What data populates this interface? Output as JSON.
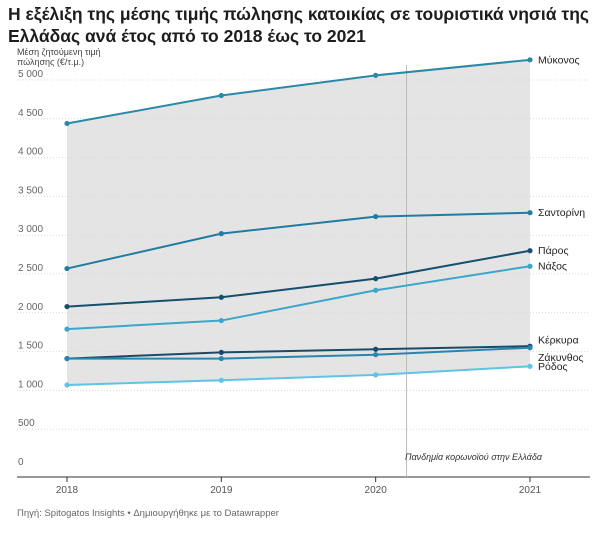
{
  "title": "Η εξέλιξη της μέσης τιμής πώλησης κατοικίας σε τουριστικά νησιά της Ελλάδας ανά έτος από το 2018 έως το 2021",
  "footer": "Πηγή: Spitogatos Insights • Δημιουργήθηκε με το Datawrapper",
  "chart_data": {
    "type": "line",
    "title": "Η εξέλιξη της μέσης τιμής πώλησης κατοικίας σε τουριστικά νησιά της Ελλάδας ανά έτος από το 2018 έως το 2021",
    "ylabel": "Μέση ζητούμενη τιμή πώλησης (€/τ.μ.)",
    "xlabel": "",
    "x": [
      2018,
      2019,
      2020,
      2021
    ],
    "x_tick_labels": [
      "2018",
      "2019",
      "2020",
      "2021"
    ],
    "ylim": [
      0,
      5000
    ],
    "y_ticks": [
      0,
      500,
      1000,
      1500,
      2000,
      2500,
      3000,
      3500,
      4000,
      4500,
      5000
    ],
    "y_tick_labels": [
      "0",
      "500",
      "1 000",
      "1 500",
      "2 000",
      "2 500",
      "3 000",
      "3 500",
      "4 000",
      "4 500",
      "5 000"
    ],
    "grid": true,
    "range_band": "shaded area between highest and lowest series",
    "series": [
      {
        "name": "Μύκονος",
        "values": [
          4440,
          4800,
          5060,
          5260
        ],
        "color": "#2a8aa6"
      },
      {
        "name": "Σαντορίνη",
        "values": [
          2570,
          3020,
          3240,
          3290
        ],
        "color": "#1f7ca3"
      },
      {
        "name": "Πάρος",
        "values": [
          2080,
          2200,
          2440,
          2800
        ],
        "color": "#154f6e"
      },
      {
        "name": "Νάξος",
        "values": [
          1790,
          1900,
          2290,
          2600
        ],
        "color": "#3ba6cc"
      },
      {
        "name": "Κέρκυρα",
        "values": [
          1410,
          1490,
          1530,
          1570
        ],
        "color": "#1a4a6a"
      },
      {
        "name": "Ζάκυνθος",
        "values": [
          1410,
          1410,
          1460,
          1550
        ],
        "color": "#2686ad"
      },
      {
        "name": "Ρόδος",
        "values": [
          1070,
          1130,
          1200,
          1310
        ],
        "color": "#5ec4e6"
      }
    ],
    "annotations": [
      {
        "text": "Πανδημία κορωνοϊού στην Ελλάδα",
        "x": 2020.2
      }
    ]
  }
}
